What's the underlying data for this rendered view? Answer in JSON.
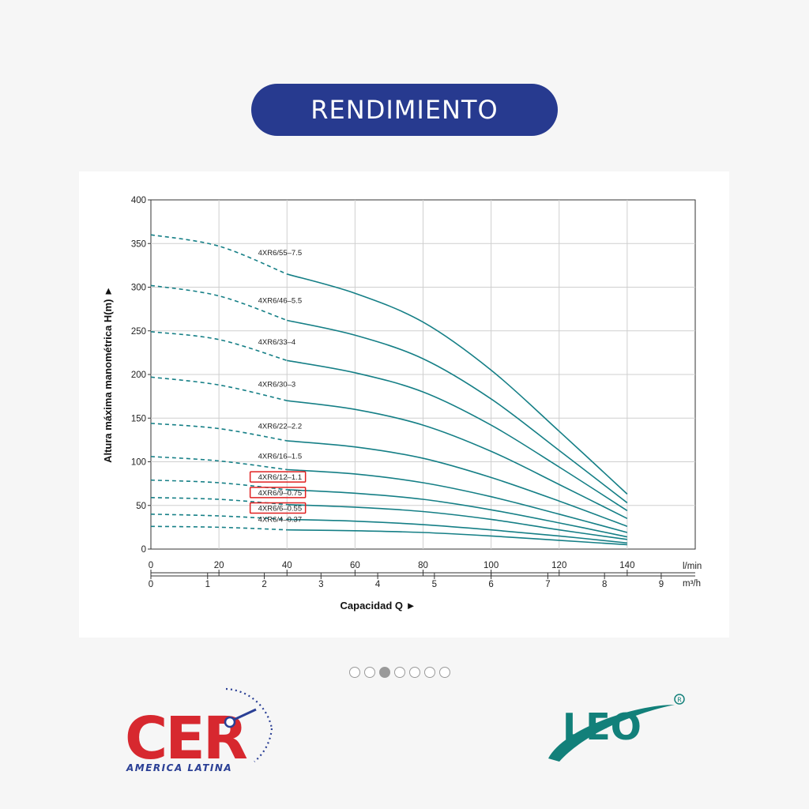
{
  "header": {
    "title": "RENDIMIENTO"
  },
  "carousel": {
    "dot_count": 7,
    "active_index": 2
  },
  "logos": {
    "cer": {
      "text": "CER",
      "subtitle": "AMERICA LATINA",
      "color": "#d7282f",
      "accent": "#2a3f95"
    },
    "leo": {
      "text": "LEO",
      "mark": "®",
      "color": "#12807a"
    }
  },
  "chart_data": {
    "type": "line",
    "xlabel": "Capacidad Q ►",
    "ylabel": "Altura máxima manométrica H(m) ►",
    "x_unit": "l/min",
    "x2_unit": "m³/h",
    "xlim": [
      0,
      160
    ],
    "ylim": [
      0,
      400
    ],
    "x_ticks": [
      0,
      20,
      40,
      60,
      80,
      100,
      120,
      140
    ],
    "x2_ticks": [
      0,
      1,
      2,
      3,
      4,
      5,
      6,
      7,
      8,
      9
    ],
    "y_ticks": [
      0,
      50,
      100,
      150,
      200,
      250,
      300,
      350,
      400
    ],
    "grid": true,
    "line_color": "#157f86",
    "highlight_color": "#e02020",
    "dashed_until_x": 40,
    "series": [
      {
        "name": "4XR6/55–7.5",
        "highlight": false,
        "points": [
          [
            0,
            360
          ],
          [
            20,
            347
          ],
          [
            40,
            315
          ],
          [
            60,
            293
          ],
          [
            80,
            260
          ],
          [
            100,
            205
          ],
          [
            120,
            135
          ],
          [
            140,
            63
          ]
        ]
      },
      {
        "name": "4XR6/46–5.5",
        "highlight": false,
        "points": [
          [
            0,
            302
          ],
          [
            20,
            290
          ],
          [
            40,
            262
          ],
          [
            60,
            245
          ],
          [
            80,
            218
          ],
          [
            100,
            172
          ],
          [
            120,
            113
          ],
          [
            140,
            53
          ]
        ]
      },
      {
        "name": "4XR6/33–4",
        "highlight": false,
        "points": [
          [
            0,
            249
          ],
          [
            20,
            240
          ],
          [
            40,
            216
          ],
          [
            60,
            202
          ],
          [
            80,
            180
          ],
          [
            100,
            142
          ],
          [
            120,
            94
          ],
          [
            140,
            44
          ]
        ]
      },
      {
        "name": "4XR6/30–3",
        "highlight": false,
        "points": [
          [
            0,
            197
          ],
          [
            20,
            188
          ],
          [
            40,
            170
          ],
          [
            60,
            160
          ],
          [
            80,
            142
          ],
          [
            100,
            112
          ],
          [
            120,
            74
          ],
          [
            140,
            35
          ]
        ]
      },
      {
        "name": "4XR6/22–2.2",
        "highlight": false,
        "points": [
          [
            0,
            144
          ],
          [
            20,
            138
          ],
          [
            40,
            124
          ],
          [
            60,
            117
          ],
          [
            80,
            104
          ],
          [
            100,
            82
          ],
          [
            120,
            55
          ],
          [
            140,
            26
          ]
        ]
      },
      {
        "name": "4XR6/16–1.5",
        "highlight": false,
        "points": [
          [
            0,
            106
          ],
          [
            20,
            101
          ],
          [
            40,
            91
          ],
          [
            60,
            86
          ],
          [
            80,
            76
          ],
          [
            100,
            60
          ],
          [
            120,
            40
          ],
          [
            140,
            19
          ]
        ]
      },
      {
        "name": "4XR6/12–1.1",
        "highlight": true,
        "points": [
          [
            0,
            79
          ],
          [
            20,
            76
          ],
          [
            40,
            68
          ],
          [
            60,
            64
          ],
          [
            80,
            57
          ],
          [
            100,
            45
          ],
          [
            120,
            30
          ],
          [
            140,
            14
          ]
        ]
      },
      {
        "name": "4XR6/9–0.75",
        "highlight": true,
        "points": [
          [
            0,
            59
          ],
          [
            20,
            57
          ],
          [
            40,
            51
          ],
          [
            60,
            48
          ],
          [
            80,
            43
          ],
          [
            100,
            34
          ],
          [
            120,
            22
          ],
          [
            140,
            11
          ]
        ]
      },
      {
        "name": "4XR6/6–0.55",
        "highlight": true,
        "points": [
          [
            0,
            40
          ],
          [
            20,
            38
          ],
          [
            40,
            34
          ],
          [
            60,
            32
          ],
          [
            80,
            28
          ],
          [
            100,
            22
          ],
          [
            120,
            15
          ],
          [
            140,
            7
          ]
        ]
      },
      {
        "name": "4XR6/4–0.37",
        "highlight": false,
        "points": [
          [
            0,
            26
          ],
          [
            20,
            25
          ],
          [
            40,
            22
          ],
          [
            60,
            21
          ],
          [
            80,
            19
          ],
          [
            100,
            15
          ],
          [
            120,
            10
          ],
          [
            140,
            5
          ]
        ]
      }
    ]
  }
}
